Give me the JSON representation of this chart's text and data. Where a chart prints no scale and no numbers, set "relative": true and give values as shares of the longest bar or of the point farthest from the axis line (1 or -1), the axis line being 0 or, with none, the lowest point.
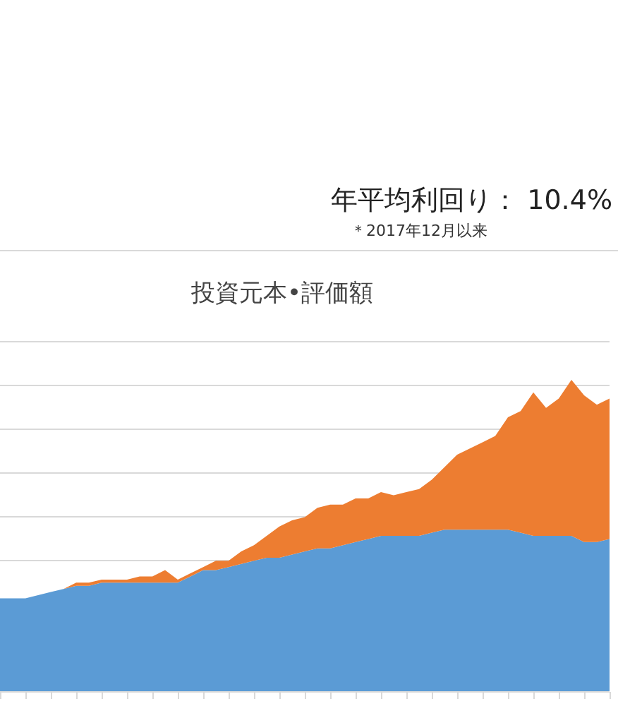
{
  "chart_data": {
    "type": "area",
    "stacked": true,
    "relative": true,
    "grid": "y",
    "title": "投資元本•評価額",
    "annotations": [
      "年平均利回り： 10.4%",
      "＊2017年12月以来"
    ],
    "categories": [
      null,
      null,
      null,
      null,
      null,
      null,
      null,
      null,
      null,
      null,
      null,
      null,
      null,
      null,
      null,
      null,
      null,
      null,
      null,
      null,
      null,
      null,
      null,
      null,
      null,
      null,
      null,
      null,
      null,
      null,
      null,
      null,
      null,
      null,
      null,
      null,
      null,
      null,
      null,
      null,
      null,
      null,
      null,
      null,
      null,
      null,
      null,
      null,
      null
    ],
    "series": [
      {
        "color": "#5b9bd5",
        "values": [
          0.3,
          0.3,
          0.3,
          0.31,
          0.32,
          0.33,
          0.34,
          0.34,
          0.35,
          0.35,
          0.35,
          0.35,
          0.35,
          0.35,
          0.35,
          0.37,
          0.39,
          0.39,
          0.4,
          0.41,
          0.42,
          0.43,
          0.43,
          0.44,
          0.45,
          0.46,
          0.46,
          0.47,
          0.48,
          0.49,
          0.5,
          0.5,
          0.5,
          0.5,
          0.51,
          0.52,
          0.52,
          0.52,
          0.52,
          0.52,
          0.52,
          0.51,
          0.5,
          0.5,
          0.5,
          0.5,
          0.48,
          0.48,
          0.49
        ]
      },
      {
        "color": "#ed7d31",
        "values": [
          0,
          0,
          0,
          0,
          0,
          0,
          0.01,
          0.01,
          0.01,
          0.01,
          0.01,
          0.02,
          0.02,
          0.04,
          0.01,
          0.01,
          0.01,
          0.03,
          0.02,
          0.04,
          0.05,
          0.07,
          0.1,
          0.11,
          0.11,
          0.13,
          0.14,
          0.13,
          0.14,
          0.13,
          0.14,
          0.13,
          0.14,
          0.15,
          0.17,
          0.2,
          0.24,
          0.26,
          0.28,
          0.3,
          0.36,
          0.39,
          0.46,
          0.41,
          0.44,
          0.5,
          0.47,
          0.44,
          0.45
        ]
      }
    ]
  }
}
